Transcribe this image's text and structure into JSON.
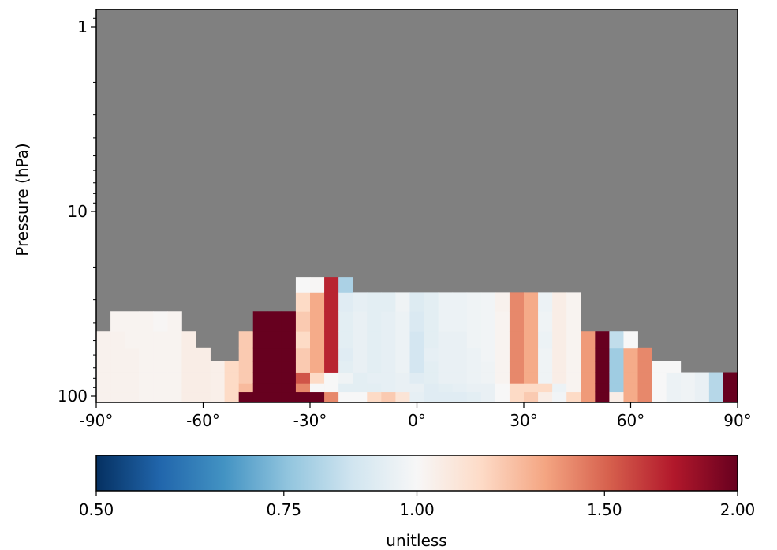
{
  "chart_data": {
    "type": "heatmap",
    "title": "",
    "xlabel": "",
    "ylabel": "Pressure (hPa)",
    "x_range": [
      -90,
      90
    ],
    "y_range_hPa": [
      100,
      0.8
    ],
    "y_scale": "log",
    "x_ticks": [
      "-90°",
      "-60°",
      "-30°",
      "0°",
      "30°",
      "60°",
      "90°"
    ],
    "y_ticks": [
      "1",
      "10",
      "100"
    ],
    "missing_color": "#808080",
    "lat_bin_deg": 4,
    "lat_bins_start": -90,
    "levels_hPa": [
      100,
      90,
      80,
      70,
      60,
      50,
      40,
      30,
      25
    ],
    "columns": [
      {
        "lat": [
          -90,
          -86
        ],
        "values": [
          1.03,
          1.03,
          1.03,
          1.03,
          1.03,
          1.03
        ]
      },
      {
        "lat": [
          -86,
          -82
        ],
        "values": [
          1.03,
          1.03,
          1.03,
          1.03,
          1.03,
          1.03,
          1.02
        ]
      },
      {
        "lat": [
          -82,
          -78
        ],
        "values": [
          1.03,
          1.03,
          1.03,
          1.03,
          1.03,
          1.02,
          1.02
        ]
      },
      {
        "lat": [
          -78,
          -74
        ],
        "values": [
          1.02,
          1.02,
          1.02,
          1.02,
          1.02,
          1.02,
          1.02
        ]
      },
      {
        "lat": [
          -74,
          -70
        ],
        "values": [
          1.02,
          1.02,
          1.02,
          1.02,
          1.02,
          1.02,
          1.01
        ]
      },
      {
        "lat": [
          -70,
          -66
        ],
        "values": [
          1.02,
          1.02,
          1.02,
          1.02,
          1.02,
          1.02,
          1.02
        ]
      },
      {
        "lat": [
          -66,
          -62
        ],
        "values": [
          1.05,
          1.05,
          1.05,
          1.05,
          1.05,
          1.05
        ]
      },
      {
        "lat": [
          -62,
          -58
        ],
        "values": [
          1.05,
          1.05,
          1.05,
          1.05,
          1.05
        ]
      },
      {
        "lat": [
          -58,
          -54
        ],
        "values": [
          1.04,
          1.04,
          1.04,
          1.04
        ]
      },
      {
        "lat": [
          -54,
          -50
        ],
        "values": [
          1.15,
          1.15,
          1.15,
          1.15
        ]
      },
      {
        "lat": [
          -50,
          -46
        ],
        "values": [
          2.0,
          1.25,
          1.2,
          1.2,
          1.2,
          1.2
        ]
      },
      {
        "lat": [
          -46,
          -42
        ],
        "values": [
          2.0,
          2.0,
          2.0,
          2.0,
          2.0,
          2.0,
          2.0
        ]
      },
      {
        "lat": [
          -42,
          -38
        ],
        "values": [
          2.0,
          2.0,
          2.0,
          2.0,
          2.0,
          2.0,
          2.0
        ]
      },
      {
        "lat": [
          -38,
          -34
        ],
        "values": [
          2.0,
          2.0,
          2.0,
          2.0,
          2.0,
          2.0,
          2.0
        ]
      },
      {
        "lat": [
          -34,
          -30
        ],
        "values": [
          2.0,
          1.4,
          1.55,
          1.2,
          1.2,
          1.15,
          1.2,
          1.15,
          1.0
        ]
      },
      {
        "lat": [
          -30,
          -26
        ],
        "values": [
          2.0,
          1.0,
          1.15,
          1.3,
          1.3,
          1.3,
          1.3,
          1.3,
          1.01
        ]
      },
      {
        "lat": [
          -26,
          -22
        ],
        "values": [
          1.4,
          1.0,
          1.0,
          1.7,
          1.7,
          1.7,
          1.7,
          1.7,
          1.7
        ]
      },
      {
        "lat": [
          -22,
          -18
        ],
        "values": [
          1.0,
          0.93,
          0.97,
          0.93,
          0.92,
          0.93,
          0.93,
          0.92,
          0.8
        ]
      },
      {
        "lat": [
          -18,
          -14
        ],
        "values": [
          1.0,
          0.93,
          0.93,
          0.95,
          0.95,
          0.95,
          0.95,
          0.94
        ]
      },
      {
        "lat": [
          -14,
          -10
        ],
        "values": [
          1.15,
          0.93,
          0.94,
          0.93,
          0.93,
          0.93,
          0.93,
          0.93
        ]
      },
      {
        "lat": [
          -10,
          -6
        ],
        "values": [
          1.2,
          0.94,
          0.94,
          0.94,
          0.94,
          0.94,
          0.94,
          0.93
        ]
      },
      {
        "lat": [
          -6,
          -2
        ],
        "values": [
          1.1,
          0.95,
          0.95,
          0.96,
          0.96,
          0.96,
          0.96,
          0.97
        ]
      },
      {
        "lat": [
          -2,
          2
        ],
        "values": [
          0.94,
          0.95,
          0.92,
          0.88,
          0.88,
          0.88,
          0.9,
          0.91
        ]
      },
      {
        "lat": [
          2,
          6
        ],
        "values": [
          0.92,
          0.92,
          0.93,
          0.93,
          0.94,
          0.93,
          0.93,
          0.93
        ]
      },
      {
        "lat": [
          6,
          10
        ],
        "values": [
          0.92,
          0.93,
          0.95,
          0.95,
          0.95,
          0.95,
          0.96,
          0.96
        ]
      },
      {
        "lat": [
          10,
          14
        ],
        "values": [
          0.92,
          0.94,
          0.95,
          0.95,
          0.95,
          0.95,
          0.96,
          0.96
        ]
      },
      {
        "lat": [
          14,
          18
        ],
        "values": [
          0.93,
          0.95,
          0.96,
          0.96,
          0.96,
          0.97,
          0.97,
          0.97
        ]
      },
      {
        "lat": [
          18,
          22
        ],
        "values": [
          0.95,
          0.95,
          0.97,
          0.97,
          0.98,
          0.98,
          0.98,
          0.98
        ]
      },
      {
        "lat": [
          22,
          26
        ],
        "values": [
          1.0,
          1.0,
          1.02,
          1.02,
          1.02,
          1.02,
          1.02,
          1.03
        ]
      },
      {
        "lat": [
          26,
          30
        ],
        "values": [
          1.15,
          1.15,
          1.4,
          1.4,
          1.4,
          1.4,
          1.4,
          1.4
        ]
      },
      {
        "lat": [
          30,
          34
        ],
        "values": [
          1.2,
          1.15,
          1.3,
          1.3,
          1.3,
          1.3,
          1.3,
          1.3
        ]
      },
      {
        "lat": [
          34,
          38
        ],
        "values": [
          1.05,
          1.15,
          0.97,
          0.97,
          0.97,
          0.96,
          0.97,
          0.96
        ]
      },
      {
        "lat": [
          38,
          42
        ],
        "values": [
          0.98,
          0.96,
          1.05,
          1.05,
          1.05,
          1.05,
          1.05,
          1.05
        ]
      },
      {
        "lat": [
          42,
          46
        ],
        "values": [
          1.15,
          1.02,
          1.02,
          1.02,
          1.02,
          1.02,
          1.02,
          1.02
        ]
      },
      {
        "lat": [
          46,
          50
        ],
        "values": [
          1.35,
          1.35,
          1.35,
          1.35,
          1.35,
          1.35
        ]
      },
      {
        "lat": [
          50,
          54
        ],
        "values": [
          2.0,
          2.0,
          2.0,
          2.0,
          2.0,
          2.0
        ]
      },
      {
        "lat": [
          54,
          58
        ],
        "values": [
          1.05,
          0.78,
          0.78,
          0.78,
          0.78,
          0.84
        ]
      },
      {
        "lat": [
          58,
          62
        ],
        "values": [
          1.3,
          1.3,
          1.3,
          1.3,
          1.3,
          1.0
        ]
      },
      {
        "lat": [
          62,
          66
        ],
        "values": [
          1.4,
          1.4,
          1.4,
          1.4,
          1.4
        ]
      },
      {
        "lat": [
          66,
          70
        ],
        "values": [
          1.0,
          1.0,
          1.0,
          1.0
        ]
      },
      {
        "lat": [
          70,
          74
        ],
        "values": [
          0.96,
          0.96,
          0.96,
          1.0
        ]
      },
      {
        "lat": [
          74,
          78
        ],
        "values": [
          0.97,
          0.97,
          0.97
        ]
      },
      {
        "lat": [
          78,
          82
        ],
        "values": [
          0.95,
          0.95,
          0.95
        ]
      },
      {
        "lat": [
          82,
          86
        ],
        "values": [
          0.82,
          0.82,
          0.82
        ]
      },
      {
        "lat": [
          86,
          90
        ],
        "values": [
          2.0,
          2.0,
          2.0
        ]
      }
    ],
    "colorbar": {
      "label": "unitless",
      "scale": "log",
      "range": [
        0.5,
        2.0
      ],
      "tick_values": [
        0.5,
        0.75,
        1.0,
        1.5,
        2.0
      ],
      "tick_labels": [
        "0.50",
        "0.75",
        "1.00",
        "1.50",
        "2.00"
      ],
      "colormap": "RdBu_r"
    }
  }
}
